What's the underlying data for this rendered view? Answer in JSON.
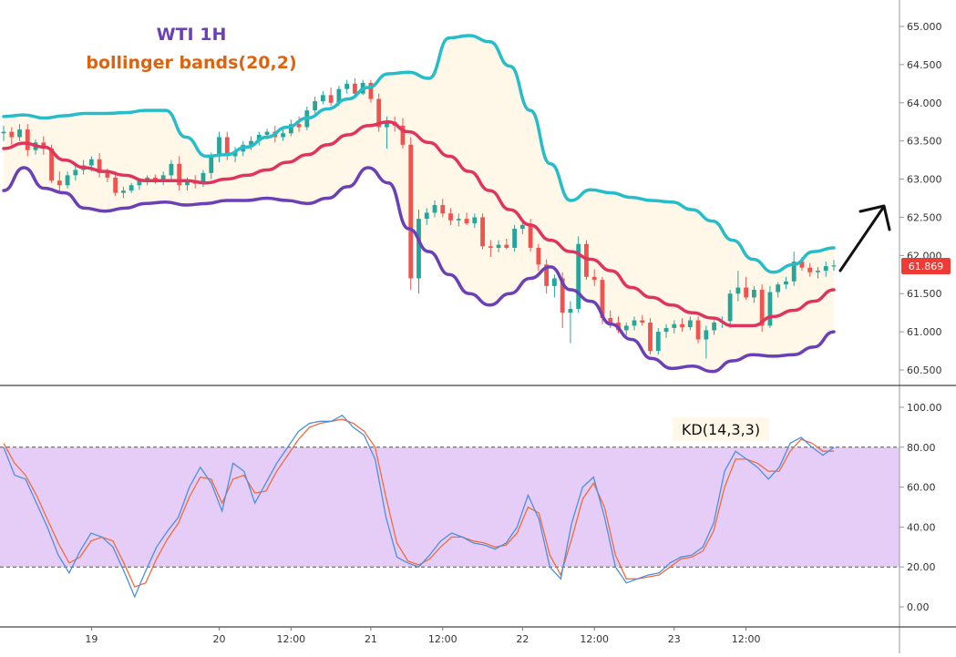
{
  "header": {
    "symbol_label": "WTI 1H",
    "indicator_label": "bollinger bands(20,2)"
  },
  "price_tag": "61.869",
  "kd_label": "KD(14,3,3)",
  "colors": {
    "bull": "#26a69a",
    "bear": "#ef5350",
    "upper_band": "#26bdc9",
    "middle_band": "#e0335e",
    "lower_band": "#6a3fb8",
    "band_fill": "#fff8e8",
    "k_line": "#4a90e2",
    "d_line": "#f26b3a",
    "kd_zone": "#e6cdf7",
    "price_tag_bg": "#ef3b36",
    "title_purple": "#6a3fb8",
    "title_orange": "#e0620d"
  },
  "chart_data": [
    {
      "type": "candlestick",
      "title": "WTI 1H",
      "subtitle": "bollinger bands(20,2)",
      "y_ticks": [
        "60.500",
        "61.000",
        "61.500",
        "62.000",
        "62.500",
        "63.000",
        "63.500",
        "64.000",
        "64.500",
        "65.000"
      ],
      "ylim": [
        60.3,
        65.4
      ],
      "x_ticks": [
        "19",
        "20",
        "12:00",
        "21",
        "12:00",
        "22",
        "12:00",
        "23",
        "12:00"
      ],
      "last_price": 61.869,
      "candles": [
        [
          63.6,
          63.7,
          63.5,
          63.62
        ],
        [
          63.62,
          63.68,
          63.45,
          63.55
        ],
        [
          63.55,
          63.72,
          63.5,
          63.65
        ],
        [
          63.65,
          63.72,
          63.3,
          63.38
        ],
        [
          63.38,
          63.52,
          63.32,
          63.48
        ],
        [
          63.48,
          63.56,
          63.32,
          63.4
        ],
        [
          63.4,
          63.45,
          62.95,
          62.98
        ],
        [
          62.98,
          63.1,
          62.85,
          62.92
        ],
        [
          62.92,
          63.1,
          62.88,
          63.05
        ],
        [
          63.05,
          63.2,
          62.98,
          63.12
        ],
        [
          63.12,
          63.25,
          63.06,
          63.18
        ],
        [
          63.18,
          63.3,
          63.1,
          63.26
        ],
        [
          63.26,
          63.34,
          63.02,
          63.08
        ],
        [
          63.08,
          63.14,
          62.96,
          63.02
        ],
        [
          63.02,
          63.1,
          62.78,
          62.82
        ],
        [
          62.82,
          62.9,
          62.75,
          62.85
        ],
        [
          62.85,
          62.95,
          62.82,
          62.92
        ],
        [
          62.92,
          63.0,
          62.86,
          62.98
        ],
        [
          62.98,
          63.05,
          62.92,
          63.02
        ],
        [
          63.02,
          63.06,
          62.94,
          62.98
        ],
        [
          62.98,
          63.1,
          62.92,
          63.05
        ],
        [
          63.05,
          63.25,
          62.98,
          63.2
        ],
        [
          63.2,
          63.3,
          62.85,
          62.92
        ],
        [
          62.92,
          63.02,
          62.85,
          62.97
        ],
        [
          62.97,
          63.05,
          62.88,
          62.94
        ],
        [
          62.94,
          63.12,
          62.9,
          63.08
        ],
        [
          63.08,
          63.35,
          63.0,
          63.3
        ],
        [
          63.3,
          63.62,
          63.22,
          63.55
        ],
        [
          63.55,
          63.62,
          63.25,
          63.3
        ],
        [
          63.3,
          63.42,
          63.22,
          63.36
        ],
        [
          63.36,
          63.5,
          63.3,
          63.45
        ],
        [
          63.45,
          63.56,
          63.38,
          63.5
        ],
        [
          63.5,
          63.62,
          63.44,
          63.58
        ],
        [
          63.58,
          63.66,
          63.52,
          63.62
        ],
        [
          63.62,
          63.7,
          63.48,
          63.55
        ],
        [
          63.55,
          63.66,
          63.5,
          63.6
        ],
        [
          63.6,
          63.78,
          63.56,
          63.72
        ],
        [
          63.72,
          63.82,
          63.62,
          63.68
        ],
        [
          63.68,
          63.95,
          63.64,
          63.9
        ],
        [
          63.9,
          64.08,
          63.86,
          64.02
        ],
        [
          64.02,
          64.15,
          63.98,
          64.1
        ],
        [
          64.1,
          64.2,
          63.96,
          64.0
        ],
        [
          64.0,
          64.22,
          63.96,
          64.18
        ],
        [
          64.18,
          64.3,
          64.12,
          64.25
        ],
        [
          64.25,
          64.32,
          64.06,
          64.12
        ],
        [
          64.12,
          64.3,
          64.1,
          64.26
        ],
        [
          64.26,
          64.3,
          64.0,
          64.05
        ],
        [
          64.05,
          64.12,
          63.62,
          63.68
        ],
        [
          63.68,
          63.82,
          63.4,
          63.75
        ],
        [
          63.75,
          63.82,
          63.62,
          63.7
        ],
        [
          63.7,
          63.8,
          63.4,
          63.45
        ],
        [
          63.45,
          63.55,
          61.55,
          61.7
        ],
        [
          61.7,
          62.6,
          61.5,
          62.48
        ],
        [
          62.48,
          62.62,
          62.4,
          62.56
        ],
        [
          62.56,
          62.72,
          62.5,
          62.66
        ],
        [
          62.66,
          62.74,
          62.5,
          62.55
        ],
        [
          62.55,
          62.62,
          62.4,
          62.46
        ],
        [
          62.46,
          62.55,
          62.38,
          62.48
        ],
        [
          62.48,
          62.56,
          62.4,
          62.42
        ],
        [
          62.42,
          62.55,
          62.36,
          62.5
        ],
        [
          62.5,
          62.55,
          62.08,
          62.12
        ],
        [
          62.12,
          62.2,
          61.98,
          62.1
        ],
        [
          62.1,
          62.2,
          62.04,
          62.14
        ],
        [
          62.14,
          62.22,
          62.08,
          62.1
        ],
        [
          62.1,
          62.4,
          62.05,
          62.35
        ],
        [
          62.35,
          62.45,
          62.28,
          62.4
        ],
        [
          62.4,
          62.48,
          62.05,
          62.1
        ],
        [
          62.1,
          62.15,
          61.8,
          61.88
        ],
        [
          61.88,
          61.95,
          61.5,
          61.6
        ],
        [
          61.6,
          61.75,
          61.45,
          61.7
        ],
        [
          61.7,
          61.78,
          61.05,
          61.25
        ],
        [
          61.25,
          61.4,
          60.85,
          61.3
        ],
        [
          61.3,
          62.25,
          61.25,
          62.15
        ],
        [
          62.15,
          62.2,
          61.68,
          61.72
        ],
        [
          61.72,
          61.82,
          61.6,
          61.68
        ],
        [
          61.68,
          61.72,
          61.1,
          61.18
        ],
        [
          61.18,
          61.28,
          61.05,
          61.12
        ],
        [
          61.12,
          61.2,
          60.98,
          61.02
        ],
        [
          61.02,
          61.12,
          60.95,
          61.08
        ],
        [
          61.08,
          61.2,
          61.02,
          61.15
        ],
        [
          61.15,
          61.22,
          61.08,
          61.12
        ],
        [
          61.12,
          61.18,
          60.7,
          60.75
        ],
        [
          60.75,
          61.05,
          60.7,
          61.0
        ],
        [
          61.0,
          61.1,
          60.92,
          61.05
        ],
        [
          61.05,
          61.15,
          60.98,
          61.1
        ],
        [
          61.1,
          61.18,
          61.0,
          61.06
        ],
        [
          61.06,
          61.2,
          61.02,
          61.15
        ],
        [
          61.15,
          61.2,
          60.85,
          60.9
        ],
        [
          60.9,
          61.08,
          60.65,
          61.02
        ],
        [
          61.02,
          61.15,
          60.96,
          61.12
        ],
        [
          61.12,
          61.2,
          61.05,
          61.14
        ],
        [
          61.14,
          61.55,
          61.05,
          61.5
        ],
        [
          61.5,
          61.8,
          61.4,
          61.58
        ],
        [
          61.58,
          61.72,
          61.42,
          61.45
        ],
        [
          61.45,
          61.6,
          61.38,
          61.55
        ],
        [
          61.55,
          61.62,
          61.0,
          61.08
        ],
        [
          61.08,
          61.6,
          61.05,
          61.52
        ],
        [
          61.52,
          61.65,
          61.45,
          61.62
        ],
        [
          61.62,
          61.72,
          61.56,
          61.66
        ],
        [
          61.66,
          62.05,
          61.6,
          61.92
        ],
        [
          61.92,
          61.98,
          61.8,
          61.84
        ],
        [
          61.84,
          61.9,
          61.72,
          61.78
        ],
        [
          61.78,
          61.85,
          61.7,
          61.8
        ],
        [
          61.8,
          61.92,
          61.72,
          61.86
        ],
        [
          61.86,
          61.94,
          61.8,
          61.869
        ]
      ],
      "upper_band": [
        63.82,
        63.84,
        63.8,
        63.83,
        63.86,
        63.86,
        63.87,
        63.9,
        63.9,
        63.55,
        63.3,
        63.32,
        63.42,
        63.55,
        63.68,
        63.8,
        63.92,
        64.05,
        64.2,
        64.38,
        64.4,
        64.32,
        64.85,
        64.88,
        64.8,
        64.48,
        63.9,
        63.2,
        62.72,
        62.86,
        62.82,
        62.76,
        62.72,
        62.7,
        62.6,
        62.45,
        62.2,
        61.95,
        61.78,
        61.88,
        62.05,
        62.1
      ],
      "middle_band": [
        63.4,
        63.47,
        63.42,
        63.25,
        63.15,
        63.1,
        63.05,
        62.98,
        62.98,
        62.98,
        62.95,
        63.0,
        63.05,
        63.12,
        63.22,
        63.32,
        63.45,
        63.58,
        63.7,
        63.75,
        63.62,
        63.48,
        63.3,
        63.1,
        62.85,
        62.6,
        62.4,
        62.2,
        62.05,
        61.95,
        61.8,
        61.58,
        61.45,
        61.35,
        61.25,
        61.18,
        61.08,
        61.08,
        61.2,
        61.28,
        61.4,
        61.55
      ],
      "lower_band": [
        62.85,
        63.15,
        62.88,
        62.82,
        62.62,
        62.58,
        62.62,
        62.68,
        62.7,
        62.66,
        62.68,
        62.72,
        62.72,
        62.75,
        62.72,
        62.68,
        62.75,
        62.9,
        63.15,
        62.95,
        62.35,
        62.05,
        61.75,
        61.5,
        61.35,
        61.5,
        61.7,
        61.85,
        61.55,
        61.4,
        61.1,
        60.9,
        60.65,
        60.52,
        60.55,
        60.48,
        60.62,
        60.7,
        60.68,
        60.7,
        60.8,
        61.0
      ]
    },
    {
      "type": "line",
      "title": "KD(14,3,3)",
      "y_ticks": [
        "0.00",
        "20.00",
        "40.00",
        "60.00",
        "80.00",
        "100.00"
      ],
      "ylim": [
        -8,
        110
      ],
      "overbought": 80,
      "oversold": 20,
      "series": [
        {
          "values": [
            80,
            66,
            64,
            52,
            40,
            26,
            17,
            28,
            37,
            35,
            30,
            18,
            5,
            18,
            30,
            38,
            45,
            60,
            70,
            62,
            48,
            72,
            68,
            52,
            62,
            72,
            80,
            88,
            92,
            93,
            93,
            96,
            90,
            86,
            74,
            45,
            25,
            22,
            20,
            26,
            33,
            37,
            35,
            32,
            31,
            29,
            32,
            40,
            56,
            44,
            20,
            14,
            42,
            60,
            65,
            45,
            20,
            12,
            14,
            16,
            17,
            22,
            25,
            26,
            30,
            42,
            68,
            78,
            74,
            70,
            64,
            70,
            82,
            85,
            80,
            76,
            80
          ]
        },
        {
          "values": [
            82,
            72,
            66,
            56,
            44,
            32,
            22,
            25,
            33,
            35,
            33,
            22,
            10,
            12,
            24,
            34,
            42,
            55,
            65,
            64,
            52,
            64,
            66,
            57,
            58,
            68,
            76,
            84,
            90,
            92,
            93,
            94,
            92,
            88,
            80,
            55,
            32,
            23,
            21,
            24,
            30,
            35,
            35,
            33,
            32,
            30,
            31,
            37,
            50,
            47,
            26,
            16,
            34,
            54,
            62,
            50,
            26,
            14,
            14,
            15,
            16,
            20,
            24,
            25,
            28,
            38,
            60,
            74,
            74,
            72,
            68,
            68,
            78,
            84,
            82,
            78,
            78
          ]
        }
      ]
    }
  ]
}
